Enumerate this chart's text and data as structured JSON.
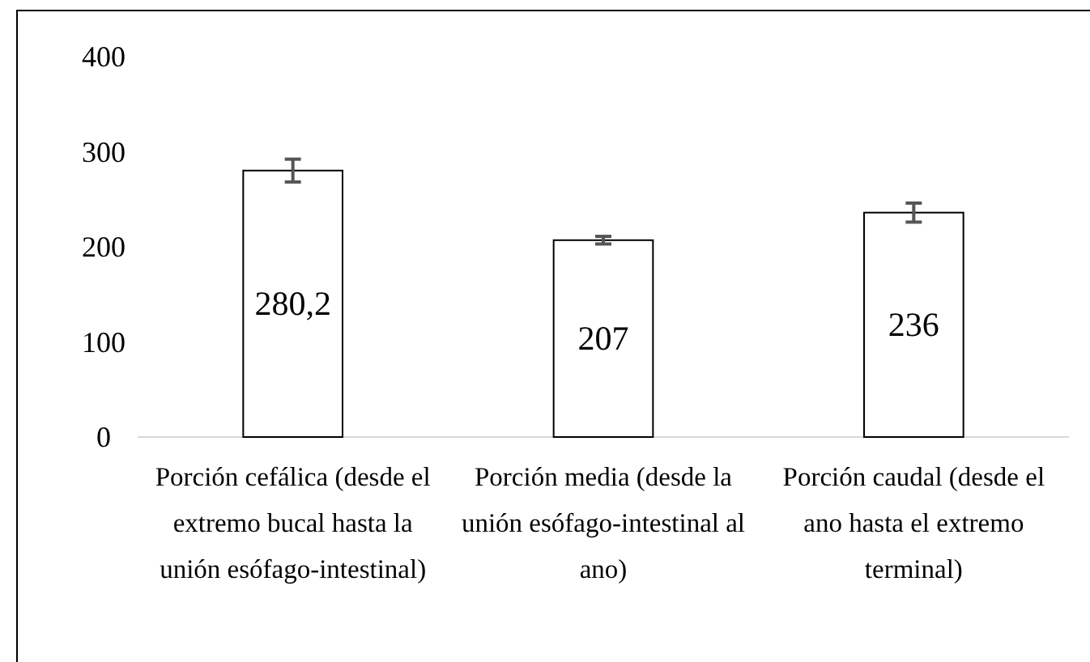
{
  "chart_data": {
    "type": "bar",
    "categories": [
      "Porción cefálica (desde el extremo bucal hasta la unión esófago-intestinal)",
      "Porción media (desde la unión esófago-intestinal al ano)",
      "Porción caudal (desde el ano hasta el extremo terminal)"
    ],
    "values": [
      280.2,
      207,
      236
    ],
    "value_labels": [
      "280,2",
      "207",
      "236"
    ],
    "errors": [
      12,
      4,
      10
    ],
    "color": "#ffffff",
    "ylim": [
      0,
      400
    ],
    "yticks": [
      0,
      100,
      200,
      300,
      400
    ],
    "grid": false
  }
}
